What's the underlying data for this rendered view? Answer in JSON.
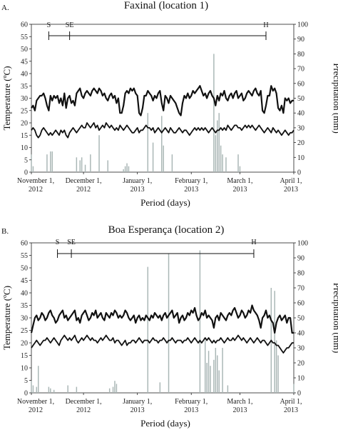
{
  "chart_data": [
    {
      "type": "line+bar",
      "panel_label": "A.",
      "title": "Faxinal (location 1)",
      "xlabel": "Period (days)",
      "ylabel_left": "Temperature (ºC)",
      "ylabel_right": "Precipitation (mm)",
      "ylim_left": [
        0,
        60
      ],
      "ylim_right": [
        0,
        100
      ],
      "yticks_left": [
        "0",
        "5",
        "10",
        "15",
        "20",
        "25",
        "30",
        "35",
        "40",
        "45",
        "50",
        "55",
        "60"
      ],
      "yticks_right": [
        "0",
        "10",
        "20",
        "30",
        "40",
        "50",
        "60",
        "70",
        "80",
        "90",
        "100"
      ],
      "x_range_days": [
        0,
        151
      ],
      "x_ticks": [
        {
          "day": 0,
          "line1": "November 1,",
          "line2": "2012"
        },
        {
          "day": 30,
          "line1": "December 1,",
          "line2": "2012"
        },
        {
          "day": 61,
          "line1": "January 1,",
          "line2": "2013"
        },
        {
          "day": 92,
          "line1": "February 1,",
          "line2": "2013"
        },
        {
          "day": 120,
          "line1": "March 1,",
          "line2": "2013"
        },
        {
          "day": 151,
          "line1": "April 1,",
          "line2": "2013"
        }
      ],
      "stages": [
        {
          "label": "S",
          "day": 10
        },
        {
          "label": "SE",
          "day": 22
        },
        {
          "label": "H",
          "day": 135
        }
      ],
      "series": [
        {
          "kind": "line",
          "axis": "left",
          "role": "max temperature",
          "values": [
            26,
            27,
            25,
            29,
            30,
            31,
            31,
            32,
            30,
            27,
            25,
            31,
            29,
            31,
            30,
            31,
            28,
            30,
            27,
            32,
            26,
            30,
            31,
            28,
            29,
            27,
            32,
            33,
            34,
            31,
            30,
            32,
            33,
            32,
            31,
            33,
            34,
            33,
            32,
            34,
            33,
            31,
            32,
            30,
            29,
            31,
            32,
            30,
            31,
            28,
            30,
            24,
            24,
            27,
            32,
            33,
            32,
            34,
            33,
            34,
            32,
            31,
            24,
            23,
            26,
            31,
            31,
            33,
            32,
            31,
            29,
            31,
            30,
            32,
            33,
            28,
            25,
            31,
            30,
            28,
            31,
            30,
            29,
            28,
            26,
            24,
            23,
            28,
            31,
            30,
            32,
            30,
            31,
            33,
            32,
            33,
            34,
            35,
            33,
            31,
            32,
            30,
            32,
            33,
            31,
            30,
            27,
            31,
            29,
            32,
            31,
            33,
            30,
            29,
            31,
            32,
            30,
            32,
            33,
            30,
            31,
            32,
            29,
            30,
            32,
            33,
            32,
            31,
            33,
            34,
            32,
            31,
            33,
            25,
            24,
            27,
            31,
            31,
            35,
            33,
            34,
            32,
            26,
            25,
            27,
            24,
            30,
            29,
            30,
            28,
            29,
            29
          ]
        },
        {
          "kind": "line",
          "axis": "left",
          "role": "min temperature",
          "values": [
            17,
            18,
            17,
            15,
            14,
            15,
            17,
            18,
            17,
            16,
            15,
            16,
            15,
            16,
            17,
            16,
            15,
            17,
            16,
            17,
            15,
            14,
            16,
            17,
            18,
            17,
            16,
            17,
            18,
            19,
            18,
            18,
            20,
            19,
            18,
            19,
            20,
            18,
            19,
            17,
            18,
            19,
            18,
            20,
            19,
            18,
            19,
            18,
            17,
            18,
            17,
            19,
            18,
            17,
            18,
            19,
            18,
            17,
            16,
            16,
            17,
            18,
            16,
            17,
            17,
            18,
            19,
            18,
            18,
            17,
            18,
            16,
            17,
            18,
            17,
            16,
            17,
            18,
            17,
            16,
            18,
            17,
            16,
            16,
            17,
            18,
            17,
            16,
            17,
            17,
            16,
            15,
            16,
            17,
            18,
            17,
            18,
            17,
            18,
            17,
            18,
            17,
            16,
            17,
            18,
            17,
            16,
            17,
            17,
            18,
            17,
            18,
            17,
            19,
            18,
            17,
            18,
            19,
            19,
            18,
            18,
            17,
            18,
            19,
            18,
            19,
            18,
            19,
            18,
            17,
            18,
            19,
            18,
            17,
            16,
            17,
            18,
            17,
            16,
            18,
            17,
            16,
            17,
            16,
            15,
            16,
            17,
            16,
            15,
            16,
            16,
            17
          ]
        },
        {
          "kind": "bar",
          "axis": "right",
          "role": "daily precipitation",
          "values": [
            12,
            4,
            0,
            0,
            0,
            0,
            0,
            0,
            0,
            12,
            0,
            14,
            14,
            0,
            0,
            0,
            0,
            0,
            0,
            0,
            0,
            0,
            0,
            0,
            0,
            0,
            10,
            0,
            8,
            10,
            0,
            5,
            0,
            0,
            12,
            0,
            0,
            0,
            0,
            25,
            0,
            0,
            0,
            0,
            8,
            0,
            0,
            0,
            0,
            0,
            0,
            0,
            0,
            2,
            4,
            6,
            4,
            0,
            0,
            0,
            0,
            0,
            0,
            0,
            0,
            0,
            0,
            40,
            0,
            0,
            20,
            0,
            0,
            0,
            0,
            38,
            18,
            0,
            0,
            0,
            0,
            12,
            0,
            0,
            0,
            0,
            0,
            0,
            0,
            0,
            0,
            0,
            0,
            0,
            0,
            0,
            0,
            0,
            0,
            0,
            0,
            0,
            0,
            0,
            0,
            80,
            25,
            35,
            40,
            18,
            12,
            0,
            10,
            0,
            0,
            0,
            0,
            0,
            0,
            12,
            4,
            0,
            0,
            0,
            0,
            0,
            0,
            0,
            0,
            0,
            0,
            0,
            0,
            0,
            0,
            0,
            0,
            0,
            0,
            0,
            0,
            0,
            0,
            0,
            0,
            0,
            0,
            0,
            0,
            0,
            0,
            0
          ]
        }
      ]
    },
    {
      "type": "line+bar",
      "panel_label": "B.",
      "title": "Boa Esperança (location 2)",
      "xlabel": "Period (days)",
      "ylabel_left": "Temperature (ºC)",
      "ylabel_right": "Precipitation (mm)",
      "ylim_left": [
        0,
        60
      ],
      "ylim_right": [
        0,
        100
      ],
      "yticks_left": [
        "0",
        "5",
        "10",
        "15",
        "20",
        "25",
        "30",
        "35",
        "40",
        "45",
        "50",
        "55",
        "60"
      ],
      "yticks_right": [
        "0",
        "10",
        "20",
        "30",
        "40",
        "50",
        "60",
        "70",
        "80",
        "90",
        "100"
      ],
      "x_range_days": [
        0,
        151
      ],
      "x_ticks": [
        {
          "day": 0,
          "line1": "November 1,",
          "line2": "2012"
        },
        {
          "day": 30,
          "line1": "December 1,",
          "line2": "2012"
        },
        {
          "day": 61,
          "line1": "January 1,",
          "line2": "2013"
        },
        {
          "day": 92,
          "line1": "February 1,",
          "line2": "2013"
        },
        {
          "day": 120,
          "line1": "March 1,",
          "line2": "2013"
        },
        {
          "day": 151,
          "line1": "April 1,",
          "line2": "2013"
        }
      ],
      "stages": [
        {
          "label": "S",
          "day": 15
        },
        {
          "label": "SE",
          "day": 23
        },
        {
          "label": "H",
          "day": 128
        }
      ],
      "series": [
        {
          "kind": "line",
          "axis": "left",
          "role": "max temperature",
          "values": [
            24,
            27,
            30,
            31,
            29,
            30,
            32,
            31,
            29,
            30,
            32,
            33,
            31,
            30,
            28,
            29,
            31,
            32,
            33,
            30,
            31,
            29,
            30,
            31,
            32,
            33,
            29,
            30,
            28,
            31,
            32,
            33,
            31,
            29,
            30,
            32,
            31,
            33,
            30,
            31,
            32,
            30,
            29,
            32,
            31,
            30,
            32,
            31,
            33,
            32,
            30,
            31,
            30,
            31,
            33,
            32,
            30,
            29,
            30,
            31,
            28,
            30,
            31,
            29,
            30,
            29,
            31,
            30,
            29,
            31,
            30,
            32,
            31,
            30,
            31,
            29,
            31,
            32,
            30,
            31,
            32,
            33,
            30,
            31,
            32,
            28,
            30,
            31,
            29,
            30,
            32,
            31,
            33,
            32,
            34,
            31,
            29,
            30,
            32,
            31,
            33,
            30,
            31,
            30,
            29,
            26,
            30,
            31,
            29,
            32,
            31,
            30,
            29,
            31,
            32,
            31,
            33,
            34,
            32,
            30,
            31,
            33,
            32,
            30,
            31,
            33,
            32,
            35,
            33,
            32,
            31,
            29,
            26,
            30,
            31,
            33,
            30,
            31,
            29,
            28,
            24,
            28,
            30,
            31,
            29,
            30,
            31,
            28,
            30,
            30,
            24,
            24
          ]
        },
        {
          "kind": "line",
          "axis": "left",
          "role": "min temperature",
          "values": [
            18,
            19,
            20,
            21,
            20,
            19,
            20,
            21,
            21,
            22,
            21,
            20,
            21,
            22,
            21,
            20,
            19,
            21,
            22,
            23,
            22,
            21,
            22,
            21,
            22,
            23,
            21,
            20,
            21,
            22,
            21,
            22,
            23,
            22,
            21,
            22,
            21,
            21,
            20,
            21,
            22,
            21,
            22,
            23,
            22,
            21,
            21,
            22,
            20,
            21,
            21,
            20,
            19,
            20,
            21,
            19,
            20,
            20,
            21,
            21,
            20,
            21,
            22,
            21,
            20,
            21,
            21,
            21,
            20,
            21,
            22,
            21,
            21,
            20,
            21,
            21,
            22,
            21,
            20,
            21,
            21,
            22,
            21,
            20,
            21,
            21,
            21,
            20,
            21,
            21,
            22,
            21,
            20,
            21,
            22,
            21,
            20,
            21,
            20,
            21,
            22,
            21,
            22,
            21,
            20,
            21,
            20,
            21,
            21,
            22,
            21,
            20,
            21,
            22,
            21,
            21,
            22,
            21,
            22,
            23,
            22,
            21,
            22,
            21,
            20,
            21,
            22,
            21,
            20,
            21,
            22,
            21,
            20,
            21,
            21,
            20,
            19,
            20,
            21,
            20,
            20,
            19,
            19,
            18,
            17,
            16,
            17,
            18,
            18,
            19,
            20,
            20
          ]
        },
        {
          "kind": "bar",
          "axis": "right",
          "role": "daily precipitation",
          "values": [
            8,
            5,
            0,
            4,
            18,
            0,
            0,
            0,
            0,
            0,
            4,
            3,
            0,
            2,
            0,
            0,
            0,
            0,
            0,
            0,
            0,
            5,
            0,
            0,
            0,
            0,
            4,
            0,
            0,
            0,
            0,
            0,
            0,
            0,
            0,
            0,
            0,
            0,
            0,
            0,
            0,
            0,
            0,
            0,
            0,
            3,
            0,
            4,
            8,
            6,
            0,
            0,
            0,
            0,
            0,
            0,
            0,
            0,
            0,
            0,
            0,
            0,
            0,
            0,
            0,
            0,
            0,
            84,
            0,
            0,
            0,
            0,
            0,
            0,
            7,
            0,
            0,
            0,
            0,
            93,
            0,
            0,
            0,
            0,
            0,
            0,
            0,
            0,
            0,
            0,
            0,
            0,
            0,
            0,
            0,
            0,
            0,
            95,
            0,
            0,
            35,
            20,
            28,
            18,
            0,
            22,
            30,
            25,
            15,
            0,
            30,
            0,
            0,
            5,
            0,
            0,
            0,
            0,
            0,
            0,
            0,
            0,
            0,
            0,
            0,
            0,
            0,
            0,
            0,
            0,
            0,
            0,
            0,
            0,
            0,
            0,
            0,
            0,
            70,
            0,
            68,
            35,
            25,
            0,
            0,
            0,
            0,
            0,
            0,
            0,
            0,
            6
          ]
        }
      ]
    }
  ]
}
